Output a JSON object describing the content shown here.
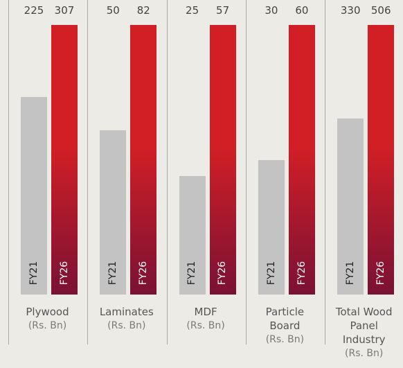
{
  "chart_data": [
    {
      "type": "bar",
      "title": "Plywood",
      "subtitle": "(Rs. Bn)",
      "categories": [
        "FY21",
        "FY26"
      ],
      "values": [
        225,
        307
      ],
      "colors": [
        "#c3c3c3",
        "#d21f26"
      ]
    },
    {
      "type": "bar",
      "title": "Laminates",
      "subtitle": "(Rs. Bn)",
      "categories": [
        "FY21",
        "FY26"
      ],
      "values": [
        50,
        82
      ],
      "colors": [
        "#c3c3c3",
        "#d21f26"
      ]
    },
    {
      "type": "bar",
      "title": "MDF",
      "subtitle": "(Rs. Bn)",
      "categories": [
        "FY21",
        "FY26"
      ],
      "values": [
        25,
        57
      ],
      "colors": [
        "#c3c3c3",
        "#d21f26"
      ]
    },
    {
      "type": "bar",
      "title": "Particle Board",
      "subtitle": "(Rs. Bn)",
      "categories": [
        "FY21",
        "FY26"
      ],
      "values": [
        30,
        60
      ],
      "colors": [
        "#c3c3c3",
        "#d21f26"
      ]
    },
    {
      "type": "bar",
      "title": "Total Wood Panel Industry",
      "subtitle": "(Rs. Bn)",
      "categories": [
        "FY21",
        "FY26"
      ],
      "values": [
        330,
        506
      ],
      "colors": [
        "#c3c3c3",
        "#d21f26"
      ]
    }
  ]
}
